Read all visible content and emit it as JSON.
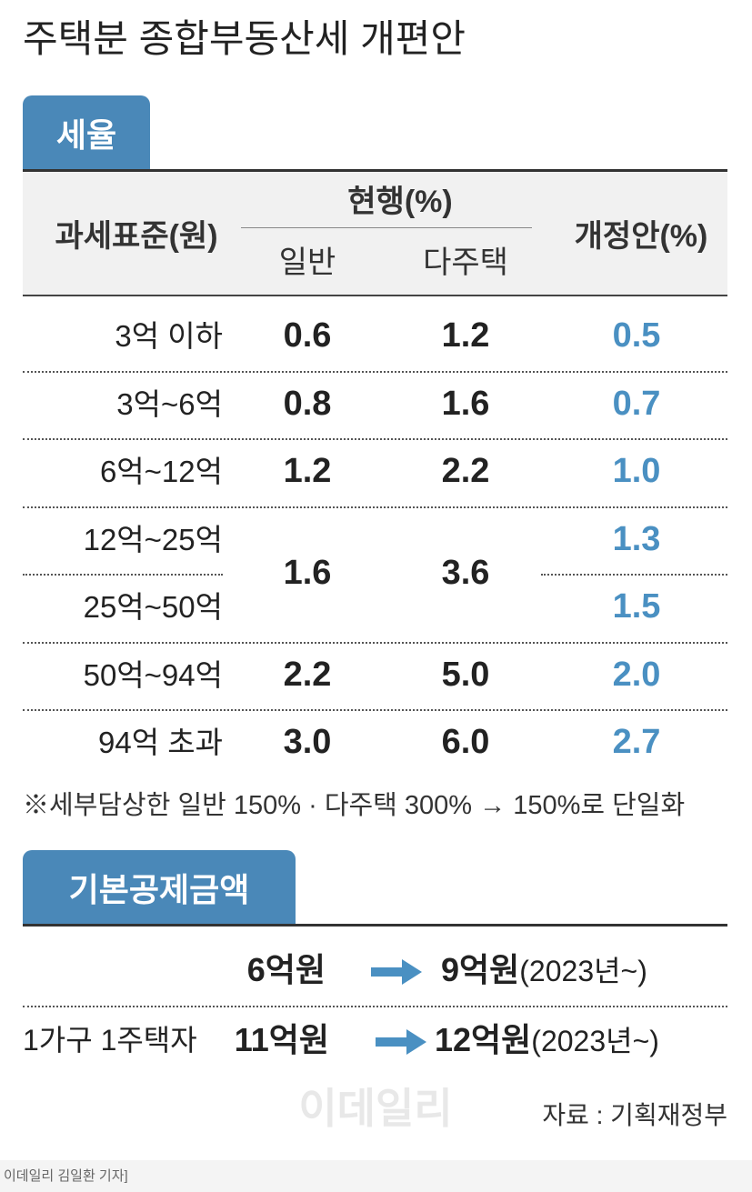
{
  "title": "주택분 종합부동산세 개편안",
  "tax_rate": {
    "label": "세율",
    "header": {
      "base": "과세표준(원)",
      "current": "현행(%)",
      "general": "일반",
      "multi": "다주택",
      "proposal": "개정안(%)"
    },
    "rows": [
      {
        "base": "3억 이하",
        "general": "0.6",
        "multi": "1.2",
        "proposal": "0.5"
      },
      {
        "base": "3억~6억",
        "general": "0.8",
        "multi": "1.6",
        "proposal": "0.7"
      },
      {
        "base": "6억~12억",
        "general": "1.2",
        "multi": "2.2",
        "proposal": "1.0"
      },
      {
        "base": "12억~25억",
        "general": "1.6",
        "multi": "3.6",
        "proposal": "1.3"
      },
      {
        "base": "25억~50억",
        "proposal": "1.5"
      },
      {
        "base": "50억~94억",
        "general": "2.2",
        "multi": "5.0",
        "proposal": "2.0"
      },
      {
        "base": "94억 초과",
        "general": "3.0",
        "multi": "6.0",
        "proposal": "2.7"
      }
    ],
    "note": "※세부담상한 일반 150% · 다주택 300% → 150%로 단일화"
  },
  "deduction": {
    "label": "기본공제금액",
    "rows": [
      {
        "before": "6억원",
        "after": "9억원",
        "period": "(2023년~)"
      },
      {
        "item": "1가구 1주택자",
        "before": "11억원",
        "after": "12억원",
        "period": "(2023년~)"
      }
    ]
  },
  "source": "자료 : 기획재정부",
  "watermark": "이데일리",
  "credit": "이데일리 김일환 기자]"
}
